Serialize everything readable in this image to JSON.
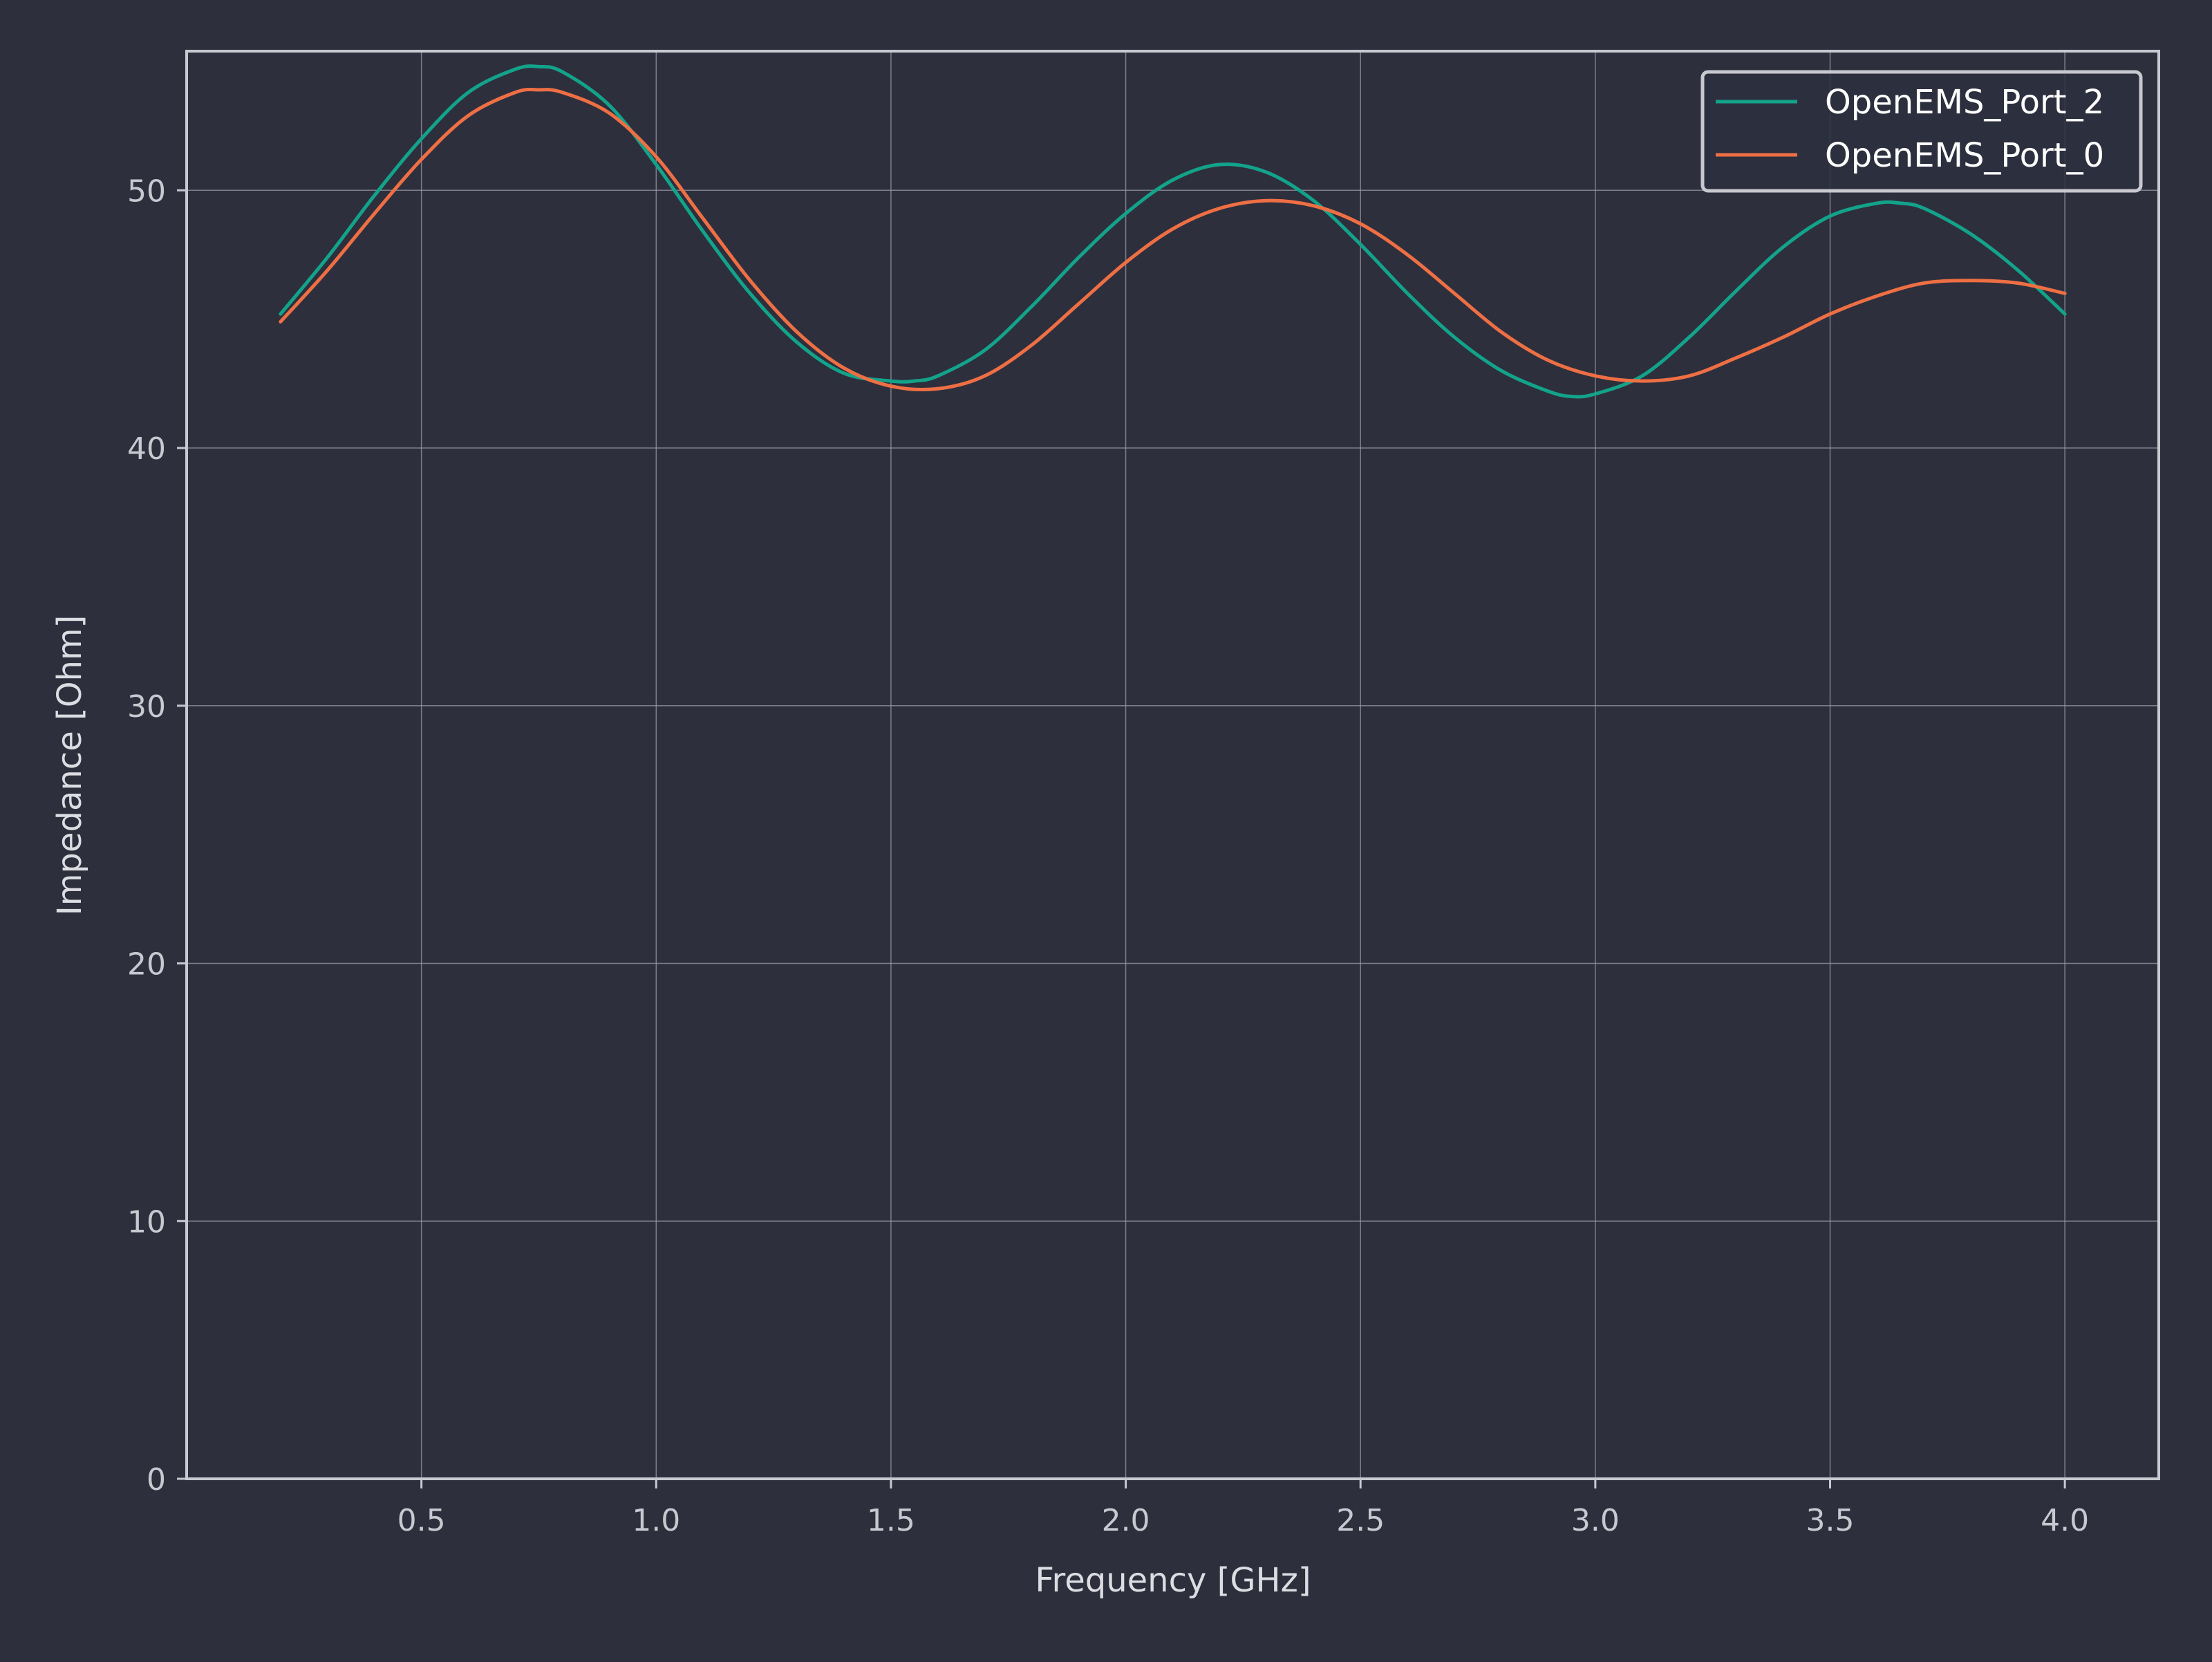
{
  "chart_data": {
    "type": "line",
    "title": "",
    "xlabel": "Frequency [GHz]",
    "ylabel": "Impedance [Ohm]",
    "xlim": [
      0.0,
      4.2
    ],
    "ylim": [
      0,
      55.4
    ],
    "xticks": [
      0.5,
      1.0,
      1.5,
      2.0,
      2.5,
      3.0,
      3.5,
      4.0
    ],
    "xtick_labels": [
      "0.5",
      "1.0",
      "1.5",
      "2.0",
      "2.5",
      "3.0",
      "3.5",
      "4.0"
    ],
    "yticks": [
      0,
      10,
      20,
      30,
      40,
      50
    ],
    "ytick_labels": [
      "0",
      "10",
      "20",
      "30",
      "40",
      "50"
    ],
    "grid": true,
    "legend_position": "top-right",
    "colors": {
      "background": "#2d2f3d",
      "axes": "#c8c9d0",
      "grid": "#9a9ba5"
    },
    "series": [
      {
        "name": "OpenEMS_Port_2",
        "color": "#13a38a",
        "x": [
          0.2,
          0.3,
          0.4,
          0.5,
          0.6,
          0.7,
          0.75,
          0.8,
          0.9,
          1.0,
          1.1,
          1.2,
          1.3,
          1.4,
          1.5,
          1.55,
          1.6,
          1.7,
          1.8,
          1.9,
          2.0,
          2.1,
          2.2,
          2.3,
          2.4,
          2.5,
          2.6,
          2.7,
          2.8,
          2.9,
          2.95,
          3.0,
          3.1,
          3.2,
          3.3,
          3.4,
          3.5,
          3.6,
          3.65,
          3.7,
          3.8,
          3.9,
          4.0
        ],
        "y": [
          45.2,
          47.4,
          49.8,
          52.0,
          53.8,
          54.7,
          54.8,
          54.6,
          53.3,
          51.0,
          48.4,
          46.0,
          44.1,
          42.9,
          42.6,
          42.6,
          42.8,
          43.8,
          45.5,
          47.4,
          49.1,
          50.4,
          51.0,
          50.7,
          49.6,
          47.9,
          46.0,
          44.3,
          43.0,
          42.2,
          42.0,
          42.1,
          42.8,
          44.3,
          46.1,
          47.8,
          49.0,
          49.5,
          49.5,
          49.3,
          48.3,
          46.9,
          45.2
        ]
      },
      {
        "name": "OpenEMS_Port_0",
        "color": "#ef6f45",
        "x": [
          0.2,
          0.3,
          0.4,
          0.5,
          0.6,
          0.7,
          0.75,
          0.8,
          0.9,
          1.0,
          1.1,
          1.2,
          1.3,
          1.4,
          1.5,
          1.6,
          1.7,
          1.8,
          1.9,
          2.0,
          2.1,
          2.2,
          2.3,
          2.4,
          2.5,
          2.6,
          2.7,
          2.8,
          2.9,
          3.0,
          3.1,
          3.2,
          3.3,
          3.4,
          3.5,
          3.6,
          3.7,
          3.8,
          3.9,
          4.0
        ],
        "y": [
          44.9,
          46.9,
          49.1,
          51.2,
          52.9,
          53.8,
          53.9,
          53.8,
          53.0,
          51.3,
          48.9,
          46.5,
          44.5,
          43.1,
          42.4,
          42.3,
          42.8,
          44.0,
          45.6,
          47.2,
          48.5,
          49.3,
          49.6,
          49.4,
          48.7,
          47.5,
          46.0,
          44.5,
          43.4,
          42.8,
          42.6,
          42.8,
          43.5,
          44.3,
          45.2,
          45.9,
          46.4,
          46.5,
          46.4,
          46.0
        ]
      }
    ]
  }
}
